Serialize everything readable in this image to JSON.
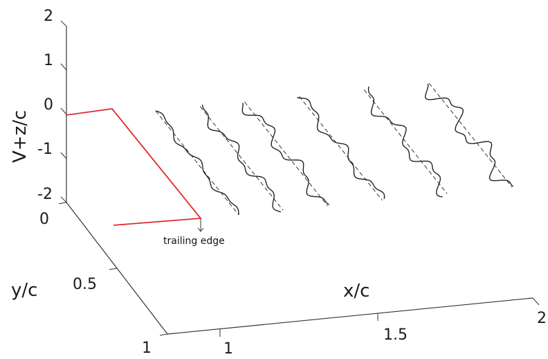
{
  "chart_data": {
    "type": "line",
    "projection": "3d",
    "axes": {
      "vertical": {
        "label": "V+z/c",
        "ticks": [
          "2",
          "1",
          "0",
          "-1",
          "-2"
        ]
      },
      "depth": {
        "label": "y/c",
        "ticks": [
          "0",
          "0.5",
          "1"
        ]
      },
      "horizontal": {
        "label": "x/c",
        "ticks": [
          "1",
          "1.5",
          "2"
        ]
      }
    },
    "annotation": {
      "text": "trailing edge"
    },
    "geometry_color": "#e0292b",
    "series": [
      {
        "x": 1.05,
        "waviness": 0.35,
        "style": "solid"
      },
      {
        "x": 1.05,
        "waviness": 0.0,
        "style": "dashed"
      },
      {
        "x": 1.18,
        "waviness": 0.55,
        "style": "solid"
      },
      {
        "x": 1.18,
        "waviness": 0.0,
        "style": "dashed"
      },
      {
        "x": 1.31,
        "waviness": 0.7,
        "style": "solid"
      },
      {
        "x": 1.31,
        "waviness": 0.0,
        "style": "dashed"
      },
      {
        "x": 1.47,
        "waviness": 0.55,
        "style": "solid"
      },
      {
        "x": 1.47,
        "waviness": 0.0,
        "style": "dashed"
      },
      {
        "x": 1.66,
        "waviness": 0.75,
        "style": "solid"
      },
      {
        "x": 1.66,
        "waviness": 0.0,
        "style": "dashed"
      },
      {
        "x": 1.85,
        "waviness": 1.0,
        "style": "solid"
      },
      {
        "x": 1.85,
        "waviness": 0.0,
        "style": "dashed"
      }
    ]
  }
}
